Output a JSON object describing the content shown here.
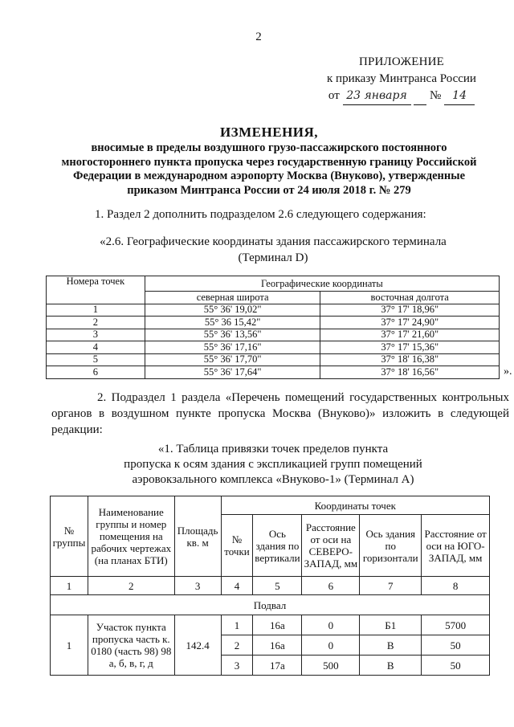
{
  "page_number": "2",
  "appendix": {
    "title": "ПРИЛОЖЕНИЕ",
    "line2": "к приказу Минтранса России",
    "from_label": "от",
    "date_handwritten": "23 января",
    "number_label": "№",
    "number_handwritten": "14"
  },
  "heading": {
    "title": "ИЗМЕНЕНИЯ,",
    "subtitle_lines": [
      "вносимые в пределы воздушного грузо-пассажирского постоянного",
      "многостороннего пункта пропуска через государственную границу Российской",
      "Федерации в международном аэропорту Москва (Внуково), утвержденные",
      "приказом Минтранса России от 24 июля 2018 г. № 279"
    ]
  },
  "item1": {
    "text": "1. Раздел 2 дополнить подразделом 2.6 следующего содержания:",
    "quote_lines": [
      "«2.6. Географические координаты здания пассажирского терминала",
      "(Терминал D)"
    ],
    "table": {
      "col1_header": "Номера точек",
      "group_header": "Географические координаты",
      "lat_header": "северная широта",
      "lon_header": "восточная долгота",
      "rows": [
        [
          "1",
          "55° 36' 19,02\"",
          "37° 17' 18,96\""
        ],
        [
          "2",
          "55° 36 15,42\"",
          "37° 17' 24,90\""
        ],
        [
          "3",
          "55° 36' 13,56\"",
          "37° 17' 21,60\""
        ],
        [
          "4",
          "55° 36' 17,16\"",
          "37° 17' 15,36\""
        ],
        [
          "5",
          "55° 36' 17,70\"",
          "37° 18' 16,38\""
        ],
        [
          "6",
          "55° 36' 17,64\"",
          "37° 18' 16,56\""
        ]
      ]
    },
    "closing": "»."
  },
  "item2": {
    "text": "2. Подраздел 1 раздела «Перечень помещений государственных контрольных органов в воздушном пункте пропуска Москва (Внуково)» изложить в следующей редакции:",
    "quote_lines": [
      "«1. Таблица привязки точек пределов пункта",
      "пропуска к осям здания с экспликацией групп помещений",
      "аэровокзального комплекса «Внуково-1» (Терминал А)"
    ],
    "table": {
      "headers": {
        "group_no": "№ группы",
        "name": "Наименование группы и номер помещения на рабочих чертежах (на планах БТИ)",
        "area": "Площадь кв. м",
        "coords": "Координаты точек",
        "point_no": "№ точки",
        "axis_vertical": "Ось здания по вертикали",
        "dist_nw": "Расстояние от оси на СЕВЕРО-ЗАПАД, мм",
        "axis_horizontal": "Ось здания по горизонтали",
        "dist_sw": "Расстояние от оси на ЮГО-ЗАПАД, мм"
      },
      "column_numbers": [
        "1",
        "2",
        "3",
        "4",
        "5",
        "6",
        "7",
        "8"
      ],
      "section": "Подвал",
      "group": {
        "no": "1",
        "name": "Участок пункта пропуска часть к. 0180 (часть 98) 98 а, б, в, г, д",
        "area": "142.4"
      },
      "rows": [
        [
          "1",
          "16а",
          "0",
          "Б1",
          "5700"
        ],
        [
          "2",
          "16а",
          "0",
          "В",
          "50"
        ],
        [
          "3",
          "17а",
          "500",
          "В",
          "50"
        ]
      ]
    }
  }
}
